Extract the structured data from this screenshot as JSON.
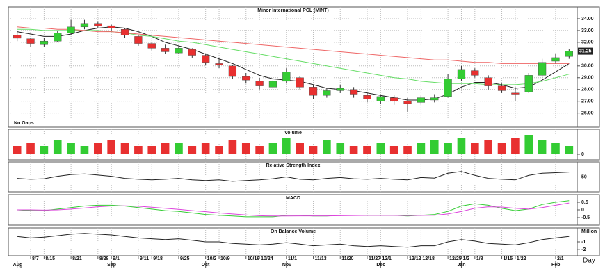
{
  "chart_data": [
    {
      "type": "candlestick",
      "title": "Minor International PCL (MINT)",
      "annotation": "No Gaps",
      "x_label": "Day",
      "categories": [
        null,
        "8/7",
        "8/15",
        null,
        "8/21",
        null,
        "8/28",
        "9/1",
        null,
        "9/11",
        "9/18",
        null,
        "9/25",
        null,
        "10/2",
        "10/9",
        null,
        "10/16",
        "10/24",
        null,
        "11/1",
        null,
        "11/13",
        null,
        "11/20",
        null,
        "11/27",
        "12/1",
        null,
        "12/12",
        "12/18",
        null,
        "12/25",
        "1/2",
        "1/8",
        null,
        "1/15",
        "1/22",
        null,
        null,
        "2/1",
        null
      ],
      "month_labels": [
        "Aug",
        null,
        null,
        null,
        null,
        null,
        null,
        "Sep",
        null,
        null,
        null,
        null,
        null,
        null,
        "Oct",
        null,
        null,
        null,
        null,
        null,
        "Nov",
        null,
        null,
        null,
        null,
        null,
        null,
        "Dec",
        null,
        null,
        null,
        null,
        null,
        "Jan",
        null,
        null,
        null,
        null,
        null,
        null,
        "Feb",
        null
      ],
      "open": [
        32.6,
        32.3,
        31.8,
        32.1,
        32.8,
        33.3,
        33.6,
        33.4,
        33.1,
        32.5,
        31.9,
        31.5,
        31.1,
        31.4,
        30.9,
        30.2,
        30.0,
        29.1,
        28.7,
        28.2,
        28.7,
        29.0,
        28.2,
        27.5,
        27.9,
        28.0,
        27.5,
        27.0,
        27.3,
        27.0,
        26.9,
        27.1,
        27.4,
        28.9,
        29.6,
        29.0,
        28.3,
        27.7,
        27.8,
        29.2,
        30.4,
        30.8
      ],
      "high": [
        33.0,
        32.4,
        32.4,
        33.0,
        33.9,
        33.9,
        33.8,
        33.5,
        33.2,
        32.6,
        32.0,
        31.8,
        31.7,
        31.5,
        31.0,
        30.6,
        30.1,
        29.4,
        29.0,
        28.9,
        29.8,
        29.1,
        28.4,
        28.1,
        28.4,
        28.2,
        27.8,
        27.6,
        27.5,
        27.3,
        27.5,
        27.6,
        29.3,
        30.0,
        29.8,
        29.2,
        28.5,
        28.2,
        29.4,
        30.6,
        31.0,
        31.4
      ],
      "low": [
        32.1,
        31.6,
        31.6,
        32.0,
        32.6,
        33.1,
        33.2,
        33.0,
        32.4,
        31.7,
        31.3,
        31.0,
        31.0,
        30.7,
        30.1,
        29.8,
        28.9,
        28.5,
        28.0,
        28.0,
        28.5,
        28.0,
        27.2,
        27.3,
        27.7,
        27.3,
        26.9,
        26.8,
        26.7,
        26.1,
        26.7,
        26.9,
        27.3,
        28.7,
        29.0,
        28.0,
        27.7,
        27.0,
        27.7,
        29.0,
        30.2,
        30.6
      ],
      "close": [
        32.35,
        31.9,
        32.1,
        32.8,
        33.3,
        33.6,
        33.4,
        33.2,
        32.6,
        31.9,
        31.5,
        31.2,
        31.5,
        30.9,
        30.3,
        30.1,
        29.1,
        28.8,
        28.3,
        28.7,
        29.5,
        28.2,
        27.5,
        27.9,
        28.1,
        27.6,
        27.2,
        27.4,
        27.0,
        26.8,
        27.3,
        27.3,
        28.9,
        29.7,
        29.2,
        28.3,
        27.9,
        27.6,
        29.2,
        30.3,
        30.7,
        31.25
      ],
      "up_color": "#33cc33",
      "down_color": "#e83030",
      "ma": [
        {
          "color": "#222222",
          "values": [
            32.9,
            32.7,
            32.5,
            32.5,
            32.7,
            33.0,
            33.2,
            33.3,
            33.2,
            32.9,
            32.5,
            32.0,
            31.7,
            31.4,
            31.0,
            30.6,
            30.2,
            29.7,
            29.2,
            28.9,
            28.8,
            28.7,
            28.4,
            28.1,
            28.0,
            27.9,
            27.7,
            27.5,
            27.3,
            27.1,
            27.1,
            27.2,
            27.6,
            28.2,
            28.6,
            28.6,
            28.4,
            28.1,
            28.2,
            28.8,
            29.5,
            30.2
          ]
        },
        {
          "color": "#66dd66",
          "values": [
            33.1,
            33.1,
            33.0,
            33.0,
            33.0,
            33.0,
            33.0,
            32.9,
            32.8,
            32.6,
            32.5,
            32.3,
            32.1,
            32.0,
            31.8,
            31.6,
            31.4,
            31.2,
            31.0,
            30.8,
            30.6,
            30.4,
            30.2,
            30.0,
            29.8,
            29.6,
            29.4,
            29.2,
            29.0,
            28.9,
            28.7,
            28.6,
            28.5,
            28.5,
            28.5,
            28.4,
            28.4,
            28.4,
            28.5,
            28.7,
            29.0,
            29.3
          ]
        },
        {
          "color": "#ee6666",
          "values": [
            33.3,
            33.2,
            33.2,
            33.1,
            33.1,
            33.0,
            32.9,
            32.9,
            32.8,
            32.7,
            32.6,
            32.5,
            32.4,
            32.3,
            32.2,
            32.1,
            32.0,
            31.9,
            31.8,
            31.7,
            31.6,
            31.5,
            31.4,
            31.3,
            31.2,
            31.1,
            31.0,
            30.9,
            30.8,
            30.7,
            30.6,
            30.5,
            30.5,
            30.4,
            30.3,
            30.3,
            30.2,
            30.2,
            30.2,
            30.2,
            30.2,
            30.2
          ]
        }
      ],
      "last_price": 31.25,
      "ylim": [
        24.8,
        35.0
      ],
      "yticks": [
        {
          "value": 26,
          "label": "26.00"
        },
        {
          "value": 27,
          "label": "27.00"
        },
        {
          "value": 28,
          "label": "28.00"
        },
        {
          "value": 29,
          "label": "29.00"
        },
        {
          "value": 30,
          "label": "30.00"
        },
        {
          "value": 32,
          "label": "32.00"
        },
        {
          "value": 33,
          "label": "33.00"
        },
        {
          "value": 34,
          "label": "34.00"
        }
      ],
      "grid": true
    },
    {
      "type": "bar",
      "title": "Volume",
      "values": [
        3,
        4,
        3,
        5,
        4,
        3,
        4,
        5,
        4,
        3,
        3,
        4,
        4,
        3,
        4,
        3,
        5,
        4,
        3,
        4,
        6,
        4,
        3,
        5,
        4,
        3,
        3,
        4,
        3,
        3,
        4,
        5,
        4,
        6,
        4,
        5,
        4,
        6,
        7,
        5,
        4,
        3
      ],
      "ylim": [
        -2,
        9
      ],
      "yticks": [
        0
      ]
    },
    {
      "type": "line",
      "title": "Relative Strength Index",
      "series": [
        {
          "color": "#222222",
          "values": [
            45,
            42,
            44,
            52,
            58,
            60,
            56,
            52,
            45,
            42,
            40,
            42,
            45,
            40,
            38,
            40,
            35,
            38,
            40,
            44,
            50,
            42,
            40,
            45,
            48,
            44,
            42,
            45,
            42,
            40,
            48,
            46,
            62,
            68,
            55,
            45,
            42,
            40,
            55,
            62,
            64,
            66
          ]
        }
      ],
      "ylim": [
        0,
        100
      ],
      "yticks": [
        50
      ]
    },
    {
      "type": "line",
      "title": "MACD",
      "series": [
        {
          "color": "#33cc33",
          "values": [
            0.0,
            -0.05,
            -0.05,
            0.05,
            0.15,
            0.25,
            0.3,
            0.3,
            0.25,
            0.15,
            0.05,
            -0.05,
            -0.1,
            -0.2,
            -0.3,
            -0.35,
            -0.4,
            -0.45,
            -0.45,
            -0.45,
            -0.35,
            -0.35,
            -0.4,
            -0.4,
            -0.35,
            -0.35,
            -0.35,
            -0.35,
            -0.35,
            -0.4,
            -0.35,
            -0.3,
            -0.1,
            0.25,
            0.4,
            0.3,
            0.1,
            -0.05,
            0.05,
            0.35,
            0.5,
            0.6
          ]
        },
        {
          "color": "#dd44dd",
          "values": [
            0.0,
            0.0,
            -0.02,
            0,
            0.05,
            0.12,
            0.2,
            0.25,
            0.26,
            0.23,
            0.17,
            0.1,
            0.03,
            -0.05,
            -0.12,
            -0.2,
            -0.27,
            -0.33,
            -0.38,
            -0.4,
            -0.4,
            -0.39,
            -0.39,
            -0.39,
            -0.38,
            -0.37,
            -0.36,
            -0.36,
            -0.36,
            -0.37,
            -0.36,
            -0.35,
            -0.27,
            -0.1,
            0.1,
            0.2,
            0.18,
            0.1,
            0.05,
            0.15,
            0.3,
            0.45
          ]
        }
      ],
      "ylim": [
        -1,
        1
      ],
      "yticks": [
        0.5,
        0,
        -0.5
      ]
    },
    {
      "type": "line",
      "title": "On Balance Volume",
      "unit_label": "Million",
      "series": [
        {
          "color": "#222222",
          "values": [
            -0.3,
            -0.5,
            -0.4,
            -0.2,
            0.0,
            0.1,
            0.0,
            -0.1,
            -0.3,
            -0.5,
            -0.6,
            -0.7,
            -0.6,
            -0.8,
            -1.0,
            -1.0,
            -1.2,
            -1.3,
            -1.4,
            -1.3,
            -1.1,
            -1.3,
            -1.5,
            -1.4,
            -1.3,
            -1.5,
            -1.6,
            -1.5,
            -1.6,
            -1.7,
            -1.5,
            -1.5,
            -1.0,
            -0.7,
            -0.9,
            -1.2,
            -1.3,
            -1.4,
            -1.1,
            -0.7,
            -0.5,
            -0.3
          ]
        }
      ],
      "ylim": [
        -2.8,
        0.8
      ],
      "yticks": [
        -1,
        -2
      ]
    }
  ]
}
